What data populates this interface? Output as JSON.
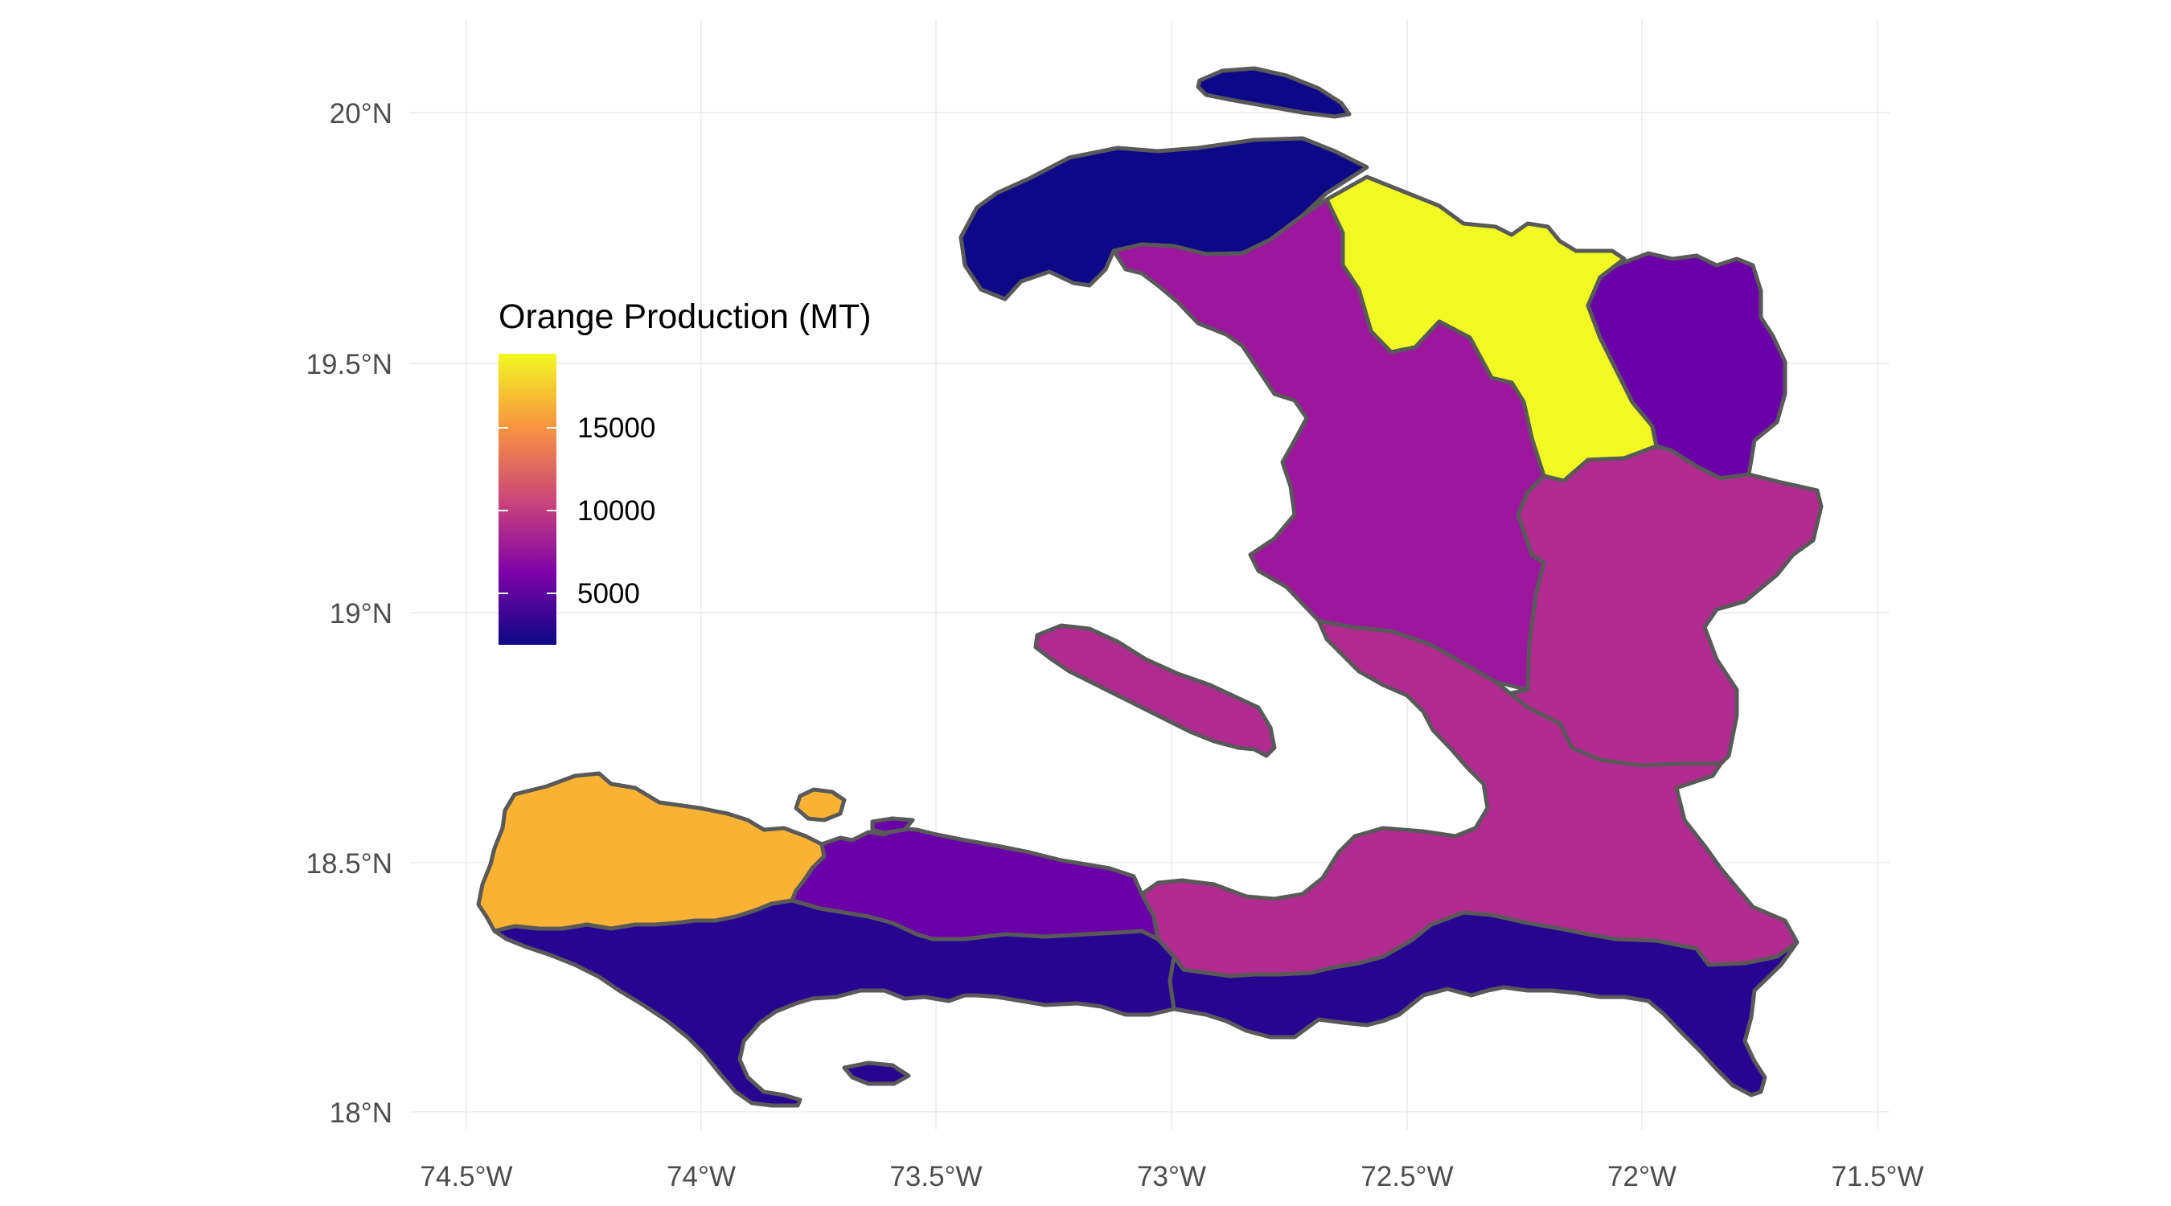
{
  "map": {
    "legend": {
      "title": "Orange  Production (MT)",
      "breaks": [
        "15000",
        "10000",
        "5000"
      ],
      "scale": "plasma",
      "gradient_colors": [
        "#0d0887",
        "#7e03a8",
        "#cc4778",
        "#f89540",
        "#f0f921"
      ]
    },
    "x_ticks": [
      "74.5°W",
      "74°W",
      "73.5°W",
      "73°W",
      "72.5°W",
      "72°W",
      "71.5°W"
    ],
    "y_ticks": [
      "20°N",
      "19.5°N",
      "19°N",
      "18.5°N",
      "18°N"
    ],
    "border_color": "#595959",
    "regions": [
      {
        "id": "nord-ouest",
        "value": 3000,
        "fill": "#0d0887"
      },
      {
        "id": "tortuga",
        "value": 3000,
        "fill": "#0d0887"
      },
      {
        "id": "nord",
        "value": 18500,
        "fill": "#f0f921"
      },
      {
        "id": "nord-est",
        "value": 6000,
        "fill": "#6a00a8"
      },
      {
        "id": "artibonite",
        "value": 9000,
        "fill": "#9c179e"
      },
      {
        "id": "centre",
        "value": 10500,
        "fill": "#b12a90"
      },
      {
        "id": "ouest",
        "value": 10500,
        "fill": "#b12a90"
      },
      {
        "id": "gonave",
        "value": 10500,
        "fill": "#b12a90"
      },
      {
        "id": "grande-anse",
        "value": 16000,
        "fill": "#f9b233"
      },
      {
        "id": "nippes",
        "value": 5500,
        "fill": "#6a00a8"
      },
      {
        "id": "sud",
        "value": 3500,
        "fill": "#260591"
      },
      {
        "id": "sud-est",
        "value": 3500,
        "fill": "#260591"
      }
    ]
  }
}
